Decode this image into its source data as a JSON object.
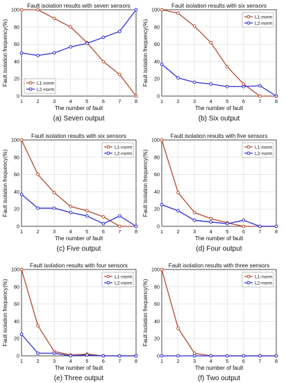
{
  "colors": {
    "l1": "#b2492a",
    "l2": "#2b2bd6",
    "grid": "#d9d9d9",
    "axis": "#222222"
  },
  "chart_data": [
    {
      "type": "line",
      "title": "Fault isolation results with seven sensors",
      "caption": "(a) Seven output",
      "xlabel": "The number of fault",
      "ylabel": "Fault isolation frequency(%)",
      "x": [
        1,
        2,
        3,
        4,
        5,
        6,
        7,
        8
      ],
      "xlim": [
        1,
        8
      ],
      "ylim": [
        0,
        100
      ],
      "xticks": [
        "1",
        "2",
        "3",
        "4",
        "5",
        "6",
        "7",
        "8"
      ],
      "yticks": [
        "0",
        "20",
        "40",
        "60",
        "80",
        "100"
      ],
      "grid": true,
      "legend": "bottom-left",
      "series": [
        {
          "name": "L1-norm",
          "values": [
            100,
            100,
            90,
            80,
            62,
            40,
            25,
            0
          ]
        },
        {
          "name": "L2-norm",
          "values": [
            50,
            47,
            50,
            57,
            61,
            68,
            75,
            100
          ]
        }
      ]
    },
    {
      "type": "line",
      "title": "Fault isolation results with six sensors",
      "caption": "(b) Six output",
      "xlabel": "The number of fault",
      "ylabel": "Fault isolation frequency(%)",
      "x": [
        1,
        2,
        3,
        4,
        5,
        6,
        7,
        8
      ],
      "xlim": [
        1,
        8
      ],
      "ylim": [
        0,
        100
      ],
      "xticks": [
        "1",
        "2",
        "3",
        "4",
        "5",
        "6",
        "7",
        "8"
      ],
      "yticks": [
        "0",
        "20",
        "40",
        "60",
        "80",
        "100"
      ],
      "grid": true,
      "legend": "top-right",
      "series": [
        {
          "name": "L1-norm",
          "values": [
            100,
            96,
            81,
            62,
            34,
            14,
            0,
            0
          ]
        },
        {
          "name": "L2-norm",
          "values": [
            37,
            21,
            16,
            14,
            11,
            11,
            12,
            0
          ]
        }
      ]
    },
    {
      "type": "line",
      "title": "Fault isolation results with six sensors",
      "caption": "(c) Five output",
      "xlabel": "The number of fault",
      "ylabel": "Fault isolation frequency(%)",
      "x": [
        1,
        2,
        3,
        4,
        5,
        6,
        7,
        8
      ],
      "xlim": [
        1,
        8
      ],
      "ylim": [
        0,
        100
      ],
      "xticks": [
        "1",
        "2",
        "3",
        "4",
        "5",
        "6",
        "7",
        "8"
      ],
      "yticks": [
        "0",
        "20",
        "40",
        "60",
        "80",
        "100"
      ],
      "grid": true,
      "legend": "top-right",
      "series": [
        {
          "name": "L1-norm",
          "values": [
            100,
            60,
            39,
            23,
            18,
            11,
            0,
            0
          ]
        },
        {
          "name": "L2-norm",
          "values": [
            37,
            21,
            21,
            16,
            12,
            3,
            12,
            0
          ]
        }
      ]
    },
    {
      "type": "line",
      "title": "Fault isolation results with five sensors",
      "caption": "(d) Four output",
      "xlabel": "The number of fault",
      "ylabel": "Fault isolation frequency(%)",
      "x": [
        1,
        2,
        3,
        4,
        5,
        6,
        7,
        8
      ],
      "xlim": [
        1,
        8
      ],
      "ylim": [
        0,
        100
      ],
      "xticks": [
        "1",
        "2",
        "3",
        "4",
        "5",
        "6",
        "7",
        "8"
      ],
      "yticks": [
        "0",
        "20",
        "40",
        "60",
        "80",
        "100"
      ],
      "grid": true,
      "legend": "top-right",
      "series": [
        {
          "name": "L1-norm",
          "values": [
            100,
            39,
            16,
            9,
            4,
            0,
            0,
            0
          ]
        },
        {
          "name": "L2-norm",
          "values": [
            25,
            18,
            7,
            5,
            3,
            7,
            0,
            0
          ]
        }
      ]
    },
    {
      "type": "line",
      "title": "Fault isolation results with four sensors",
      "caption": "(e) Three output",
      "xlabel": "The number of fault",
      "ylabel": "Fault isolation frequency(%)",
      "x": [
        1,
        2,
        3,
        4,
        5,
        6,
        7,
        8
      ],
      "xlim": [
        1,
        8
      ],
      "ylim": [
        0,
        100
      ],
      "xticks": [
        "1",
        "2",
        "3",
        "4",
        "5",
        "6",
        "7",
        "8"
      ],
      "yticks": [
        "0",
        "20",
        "40",
        "60",
        "80",
        "100"
      ],
      "grid": true,
      "legend": "top-right",
      "series": [
        {
          "name": "L1-norm",
          "values": [
            100,
            35,
            5,
            1,
            2,
            0,
            0,
            0
          ]
        },
        {
          "name": "L2-norm",
          "values": [
            25,
            3,
            3,
            0,
            1,
            0,
            0,
            0
          ]
        }
      ]
    },
    {
      "type": "line",
      "title": "Fault isolation results with three sensors",
      "caption": "(f) Two output",
      "xlabel": "The number of fault",
      "ylabel": "Fault isolation frequency(%)",
      "x": [
        1,
        2,
        3,
        4,
        5,
        6,
        7,
        8
      ],
      "xlim": [
        1,
        8
      ],
      "ylim": [
        0,
        100
      ],
      "xticks": [
        "1",
        "2",
        "3",
        "4",
        "5",
        "6",
        "7",
        "8"
      ],
      "yticks": [
        "0",
        "20",
        "40",
        "60",
        "80",
        "100"
      ],
      "grid": true,
      "legend": "top-right",
      "series": [
        {
          "name": "L1-norm",
          "values": [
            100,
            32,
            3,
            0,
            0,
            0,
            0,
            0
          ]
        },
        {
          "name": "L2-norm",
          "values": [
            0,
            0,
            0,
            0,
            0,
            0,
            0,
            0
          ]
        }
      ]
    }
  ]
}
